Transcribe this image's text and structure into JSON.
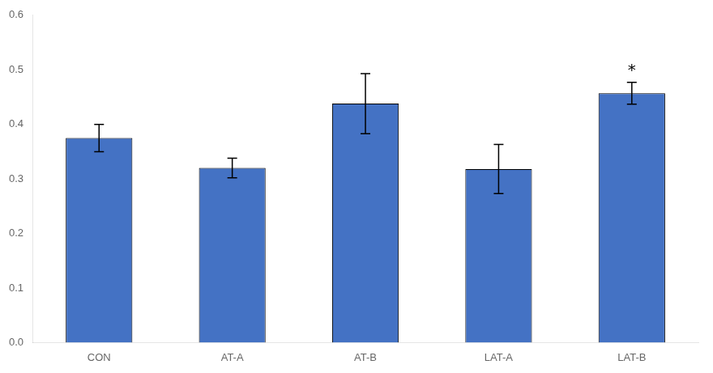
{
  "chart_data": {
    "type": "bar",
    "categories": [
      "CON",
      "AT-A",
      "AT-B",
      "LAT-A",
      "LAT-B"
    ],
    "values": [
      0.375,
      0.32,
      0.438,
      0.318,
      0.457
    ],
    "errors": [
      0.025,
      0.018,
      0.055,
      0.045,
      0.02
    ],
    "color": "#4472C4",
    "ylim": [
      0.0,
      0.6
    ],
    "yticks": [
      {
        "value": 0.0,
        "label": "0.0"
      },
      0.1,
      0.2,
      0.3,
      0.4,
      0.5,
      0.6
    ],
    "annotations": [
      {
        "x": "LAT-B",
        "text": "*"
      }
    ],
    "grid": false
  }
}
